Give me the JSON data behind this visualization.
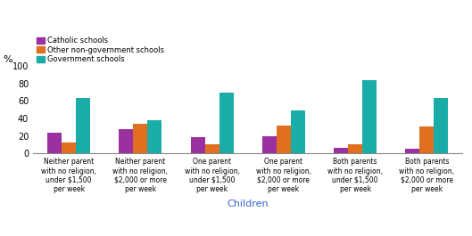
{
  "categories": [
    "Neither parent\nwith no religion,\nunder $1,500\nper week",
    "Neither parent\nwith no religion,\n$2,000 or more\nper week",
    "One parent\nwith no religion,\nunder $1,500\nper week",
    "One parent\nwith no religion,\n$2,000 or more\nper week",
    "Both parents\nwith no religion,\nunder $1,500\nper week",
    "Both parents\nwith no religion,\n$2,000 or more\nper week"
  ],
  "series": {
    "Catholic schools": [
      24,
      28,
      19,
      20,
      6,
      5
    ],
    "Other non-government schools": [
      13,
      34,
      10,
      32,
      10,
      31
    ],
    "Government schools": [
      63,
      38,
      70,
      49,
      84,
      63
    ]
  },
  "colors": {
    "Catholic schools": "#9b30a0",
    "Other non-government schools": "#e07020",
    "Government schools": "#1aada8"
  },
  "ylabel": "%",
  "xlabel": "Children",
  "ylim": [
    0,
    100
  ],
  "yticks": [
    0,
    20,
    40,
    60,
    80,
    100
  ],
  "grid_color": "#ffffff",
  "bg_color": "#ffffff",
  "bar_width": 0.2,
  "legend_order": [
    "Catholic schools",
    "Other non-government schools",
    "Government schools"
  ]
}
